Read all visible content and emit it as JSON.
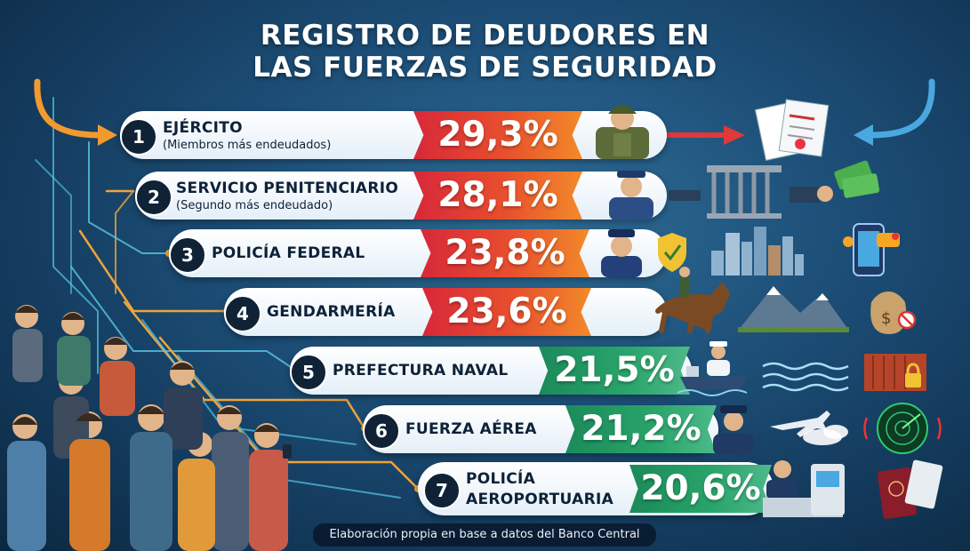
{
  "title": {
    "line1": "REGISTRO DE DEUDORES EN",
    "line2": "LAS FUERZAS DE SEGURIDAD"
  },
  "ranking": [
    {
      "rank": "1",
      "name": "EJÉRCITO",
      "subtitle": "(Miembros más endeudados)",
      "percent": "29,3%",
      "value": 29.3,
      "tone": "hot"
    },
    {
      "rank": "2",
      "name": "SERVICIO PENITENCIARIO",
      "subtitle": "(Segundo más endeudado)",
      "percent": "28,1%",
      "value": 28.1,
      "tone": "hot"
    },
    {
      "rank": "3",
      "name": "POLICÍA FEDERAL",
      "subtitle": "",
      "percent": "23,8%",
      "value": 23.8,
      "tone": "hot"
    },
    {
      "rank": "4",
      "name": "GENDARMERÍA",
      "subtitle": "",
      "percent": "23,6%",
      "value": 23.6,
      "tone": "hot"
    },
    {
      "rank": "5",
      "name": "PREFECTURA NAVAL",
      "subtitle": "",
      "percent": "21,5%",
      "value": 21.5,
      "tone": "cool"
    },
    {
      "rank": "6",
      "name": "FUERZA AÉREA",
      "subtitle": "",
      "percent": "21,2%",
      "value": 21.2,
      "tone": "cool"
    },
    {
      "rank": "7",
      "name": "POLICÍA",
      "name_line2": "AEROPORTUARIA",
      "subtitle": "",
      "percent": "20,6%",
      "value": 20.6,
      "tone": "cool"
    }
  ],
  "icons": [
    "soldier-icon",
    "documents-icon",
    "guard-icon",
    "prison-bars-icon",
    "money-handoff-icon",
    "police-officer-icon",
    "shield-check-icon",
    "city-skyline-icon",
    "phone-alert-icon",
    "horse-rider-icon",
    "mountains-icon",
    "money-bag-icon",
    "sailor-icon",
    "ship-icon",
    "waves-icon",
    "locked-container-icon",
    "pilot-icon",
    "airplane-icon",
    "radar-icon",
    "airport-officer-icon",
    "checkin-kiosk-icon",
    "passport-icon",
    "crowd-illustration"
  ],
  "colors": {
    "hot": "#e23b33",
    "cool": "#23995f",
    "circuit": "#f0a33a",
    "circuit_cool": "#57c8e6"
  },
  "footer": "Elaboración propia en base a datos del Banco Central"
}
